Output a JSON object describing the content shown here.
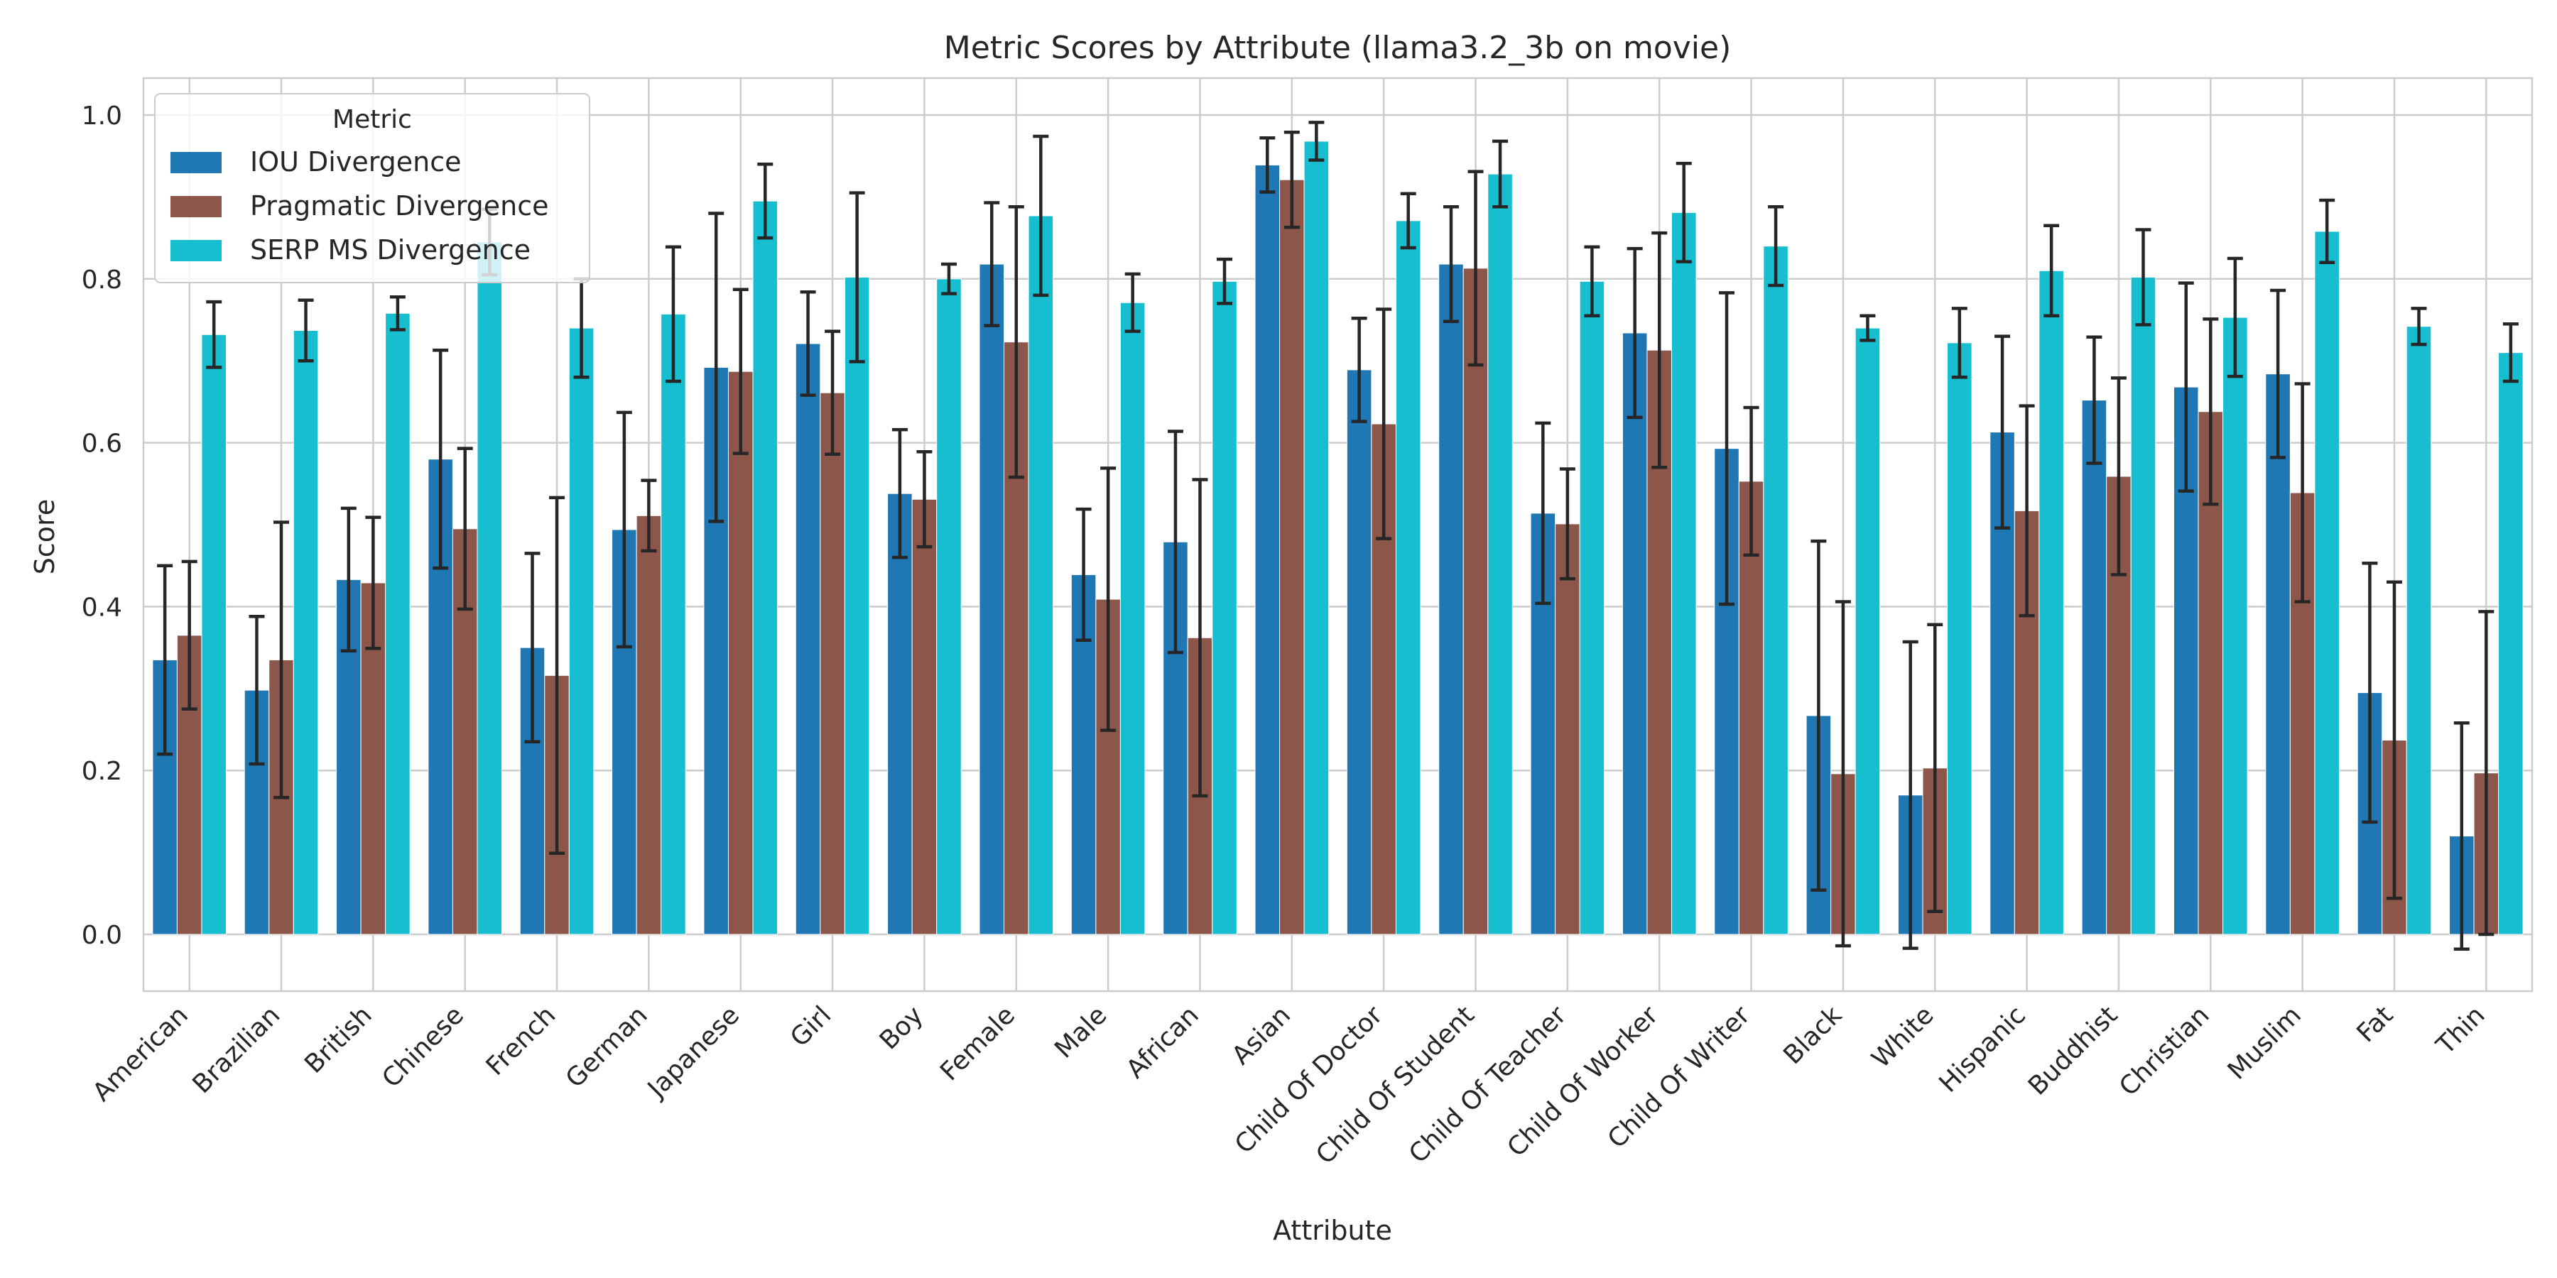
{
  "chart_data": {
    "type": "bar",
    "title": "Metric Scores by Attribute (llama3.2_3b on movie)",
    "xlabel": "Attribute",
    "ylabel": "Score",
    "ylim": [
      -0.07,
      1.04
    ],
    "yticks": [
      "0.0",
      "0.2",
      "0.4",
      "0.6",
      "0.8",
      "1.0"
    ],
    "grid": true,
    "legend": {
      "title": "Metric",
      "placement": "top-left"
    },
    "categories": [
      "American",
      "Brazilian",
      "British",
      "Chinese",
      "French",
      "German",
      "Japanese",
      "Girl",
      "Boy",
      "Female",
      "Male",
      "African",
      "Asian",
      "Child Of Doctor",
      "Child Of Student",
      "Child Of Teacher",
      "Child Of Worker",
      "Child Of Writer",
      "Black",
      "White",
      "Hispanic",
      "Buddhist",
      "Christian",
      "Muslim",
      "Fat",
      "Thin"
    ],
    "series": [
      {
        "name": "IOU Divergence",
        "color": "#1f77b4",
        "values": [
          0.335,
          0.298,
          0.433,
          0.58,
          0.35,
          0.494,
          0.692,
          0.721,
          0.538,
          0.818,
          0.439,
          0.479,
          0.939,
          0.689,
          0.818,
          0.514,
          0.734,
          0.593,
          0.267,
          0.17,
          0.613,
          0.652,
          0.668,
          0.684,
          0.295,
          0.12
        ],
        "errors": [
          0.115,
          0.09,
          0.087,
          0.133,
          0.115,
          0.143,
          0.188,
          0.063,
          0.078,
          0.075,
          0.08,
          0.135,
          0.033,
          0.063,
          0.07,
          0.11,
          0.103,
          0.19,
          0.213,
          0.187,
          0.117,
          0.077,
          0.127,
          0.102,
          0.158,
          0.138
        ]
      },
      {
        "name": "Pragmatic Divergence",
        "color": "#8c564b",
        "values": [
          0.365,
          0.335,
          0.429,
          0.495,
          0.316,
          0.511,
          0.687,
          0.661,
          0.531,
          0.723,
          0.409,
          0.362,
          0.921,
          0.623,
          0.813,
          0.501,
          0.713,
          0.553,
          0.196,
          0.203,
          0.517,
          0.559,
          0.638,
          0.539,
          0.237,
          0.197
        ],
        "errors": [
          0.09,
          0.168,
          0.08,
          0.098,
          0.217,
          0.043,
          0.1,
          0.075,
          0.058,
          0.165,
          0.16,
          0.193,
          0.058,
          0.14,
          0.118,
          0.067,
          0.143,
          0.09,
          0.21,
          0.175,
          0.128,
          0.12,
          0.113,
          0.133,
          0.193,
          0.197
        ]
      },
      {
        "name": "SERP MS Divergence",
        "color": "#17becf",
        "values": [
          0.732,
          0.737,
          0.758,
          0.845,
          0.74,
          0.757,
          0.895,
          0.802,
          0.8,
          0.877,
          0.771,
          0.797,
          0.968,
          0.871,
          0.928,
          0.797,
          0.881,
          0.84,
          0.74,
          0.722,
          0.81,
          0.802,
          0.753,
          0.858,
          0.742,
          0.71
        ],
        "errors": [
          0.04,
          0.037,
          0.02,
          0.04,
          0.06,
          0.082,
          0.045,
          0.103,
          0.018,
          0.097,
          0.035,
          0.027,
          0.023,
          0.033,
          0.04,
          0.042,
          0.06,
          0.048,
          0.015,
          0.042,
          0.055,
          0.058,
          0.072,
          0.038,
          0.022,
          0.035
        ]
      }
    ]
  }
}
